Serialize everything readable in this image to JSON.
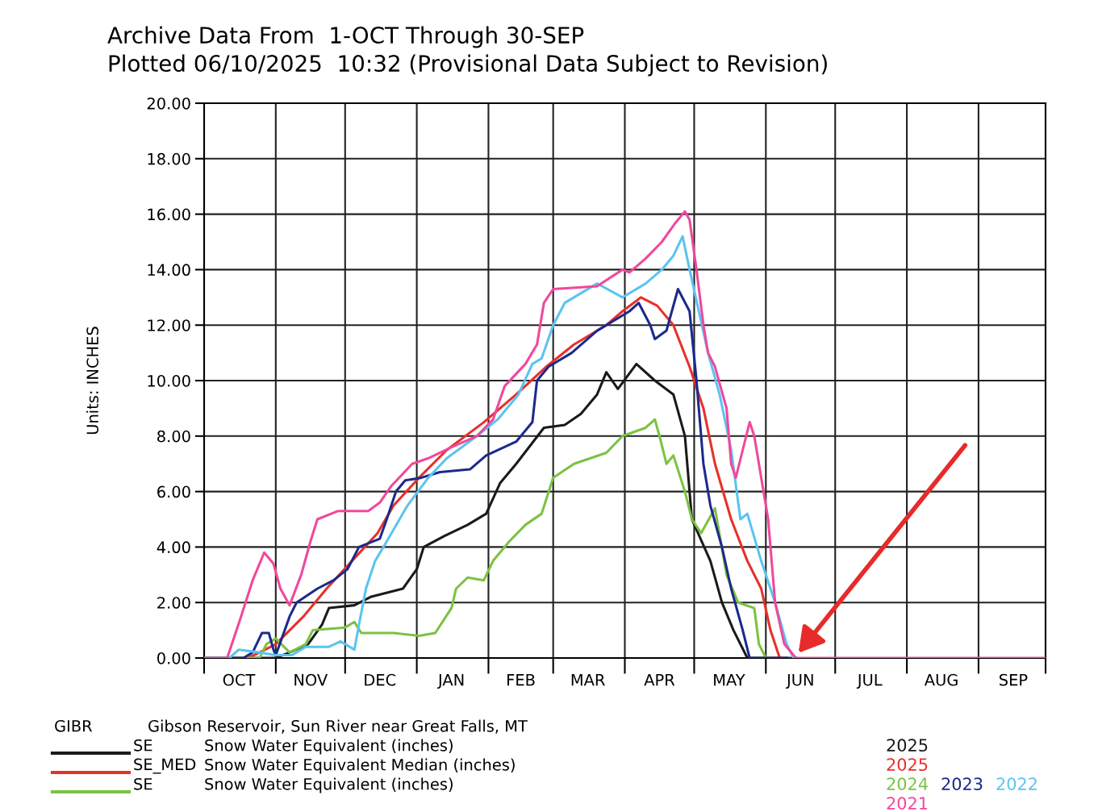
{
  "chart_data": {
    "type": "line",
    "title": "Archive Data From  1-OCT Through 30-SEP",
    "subtitle": "Plotted 06/10/2025  10:32 (Provisional Data Subject to Revision)",
    "ylabel": "Units: INCHES",
    "xlim": [
      "2024-10-01",
      "2025-09-30"
    ],
    "xticks": [
      {
        "value": "2024-10-01",
        "label": null
      },
      {
        "value": "2024-10-16",
        "label": "OCT"
      },
      {
        "value": "2024-11-01",
        "label": null
      },
      {
        "value": "2024-11-16",
        "label": "NOV"
      },
      {
        "value": "2024-12-01",
        "label": null
      },
      {
        "value": "2024-12-16",
        "label": "DEC"
      },
      {
        "value": "2025-01-01",
        "label": null
      },
      {
        "value": "2025-01-16",
        "label": "JAN"
      },
      {
        "value": "2025-02-01",
        "label": null
      },
      {
        "value": "2025-02-15",
        "label": "FEB"
      },
      {
        "value": "2025-03-01",
        "label": null
      },
      {
        "value": "2025-03-16",
        "label": "MAR"
      },
      {
        "value": "2025-04-01",
        "label": null
      },
      {
        "value": "2025-04-16",
        "label": "APR"
      },
      {
        "value": "2025-05-01",
        "label": null
      },
      {
        "value": "2025-05-16",
        "label": "MAY"
      },
      {
        "value": "2025-06-01",
        "label": null
      },
      {
        "value": "2025-06-16",
        "label": "JUN"
      },
      {
        "value": "2025-07-01",
        "label": null
      },
      {
        "value": "2025-07-16",
        "label": "JUL"
      },
      {
        "value": "2025-08-01",
        "label": null
      },
      {
        "value": "2025-08-16",
        "label": "AUG"
      },
      {
        "value": "2025-09-01",
        "label": null
      },
      {
        "value": "2025-09-16",
        "label": "SEP"
      },
      {
        "value": "2025-09-30",
        "label": null
      }
    ],
    "ylim": [
      0,
      20
    ],
    "yticks": [
      {
        "value": 0,
        "label": "0.00"
      },
      {
        "value": 2,
        "label": "2.00"
      },
      {
        "value": 4,
        "label": "4.00"
      },
      {
        "value": 6,
        "label": "6.00"
      },
      {
        "value": 8,
        "label": "8.00"
      },
      {
        "value": 10,
        "label": "10.00"
      },
      {
        "value": 12,
        "label": "12.00"
      },
      {
        "value": 14,
        "label": "14.00"
      },
      {
        "value": 16,
        "label": "16.00"
      },
      {
        "value": 18,
        "label": "18.00"
      },
      {
        "value": 20,
        "label": "20.00"
      }
    ],
    "grid": true,
    "legend": "bottom right",
    "marker": "none",
    "line_style": "solid",
    "annotations": [
      "GIBR",
      "Gibson Reservoir, Sun River near Great Falls, MT",
      "SE",
      "Snow Water Equivalent (inches)",
      "SE_MED",
      "Snow Water Equivalent Median (inches)",
      "SE",
      "Snow Water Equivalent (inches)"
    ],
    "series": [
      {
        "name": "2025",
        "color": "#1a1a1a",
        "x": [
          "2024-10-01",
          "2024-11-01",
          "2024-11-07",
          "2024-11-15",
          "2024-11-21",
          "2024-11-24",
          "2024-12-05",
          "2024-12-12",
          "2024-12-26",
          "2025-01-01",
          "2025-01-04",
          "2025-01-13",
          "2025-01-23",
          "2025-01-31",
          "2025-02-06",
          "2025-02-13",
          "2025-02-25",
          "2025-03-06",
          "2025-03-13",
          "2025-03-20",
          "2025-03-24",
          "2025-03-29",
          "2025-04-06",
          "2025-04-14",
          "2025-04-22",
          "2025-04-27",
          "2025-04-30",
          "2025-05-08",
          "2025-05-13",
          "2025-05-18",
          "2025-05-24",
          "2025-06-10"
        ],
        "values": [
          0,
          0,
          0.2,
          0.5,
          1.2,
          1.8,
          1.9,
          2.2,
          2.5,
          3.2,
          4.0,
          4.4,
          4.8,
          5.2,
          6.3,
          7.0,
          8.3,
          8.4,
          8.8,
          9.5,
          10.3,
          9.7,
          10.6,
          10.0,
          9.5,
          8.0,
          5.0,
          3.5,
          2.0,
          1.0,
          0,
          0
        ]
      },
      {
        "name": "2025",
        "color": "#e8302a",
        "x": [
          "2024-10-01",
          "2024-10-20",
          "2024-10-25",
          "2024-11-01",
          "2024-11-13",
          "2024-11-23",
          "2024-12-04",
          "2024-12-15",
          "2024-12-22",
          "2025-01-02",
          "2025-01-14",
          "2025-01-30",
          "2025-02-13",
          "2025-02-26",
          "2025-03-10",
          "2025-03-24",
          "2025-03-31",
          "2025-04-08",
          "2025-04-15",
          "2025-04-22",
          "2025-04-29",
          "2025-05-05",
          "2025-05-10",
          "2025-05-17",
          "2025-05-24",
          "2025-05-30",
          "2025-06-03",
          "2025-06-07"
        ],
        "values": [
          0,
          0,
          0.2,
          0.5,
          1.5,
          2.5,
          3.5,
          4.5,
          5.5,
          6.5,
          7.5,
          8.5,
          9.5,
          10.5,
          11.3,
          12.0,
          12.5,
          13.0,
          12.7,
          12.0,
          10.5,
          9.0,
          7.0,
          5.0,
          3.5,
          2.5,
          1.0,
          0
        ]
      },
      {
        "name": "2024",
        "color": "#7cc242",
        "x": [
          "2024-10-01",
          "2024-10-25",
          "2024-10-28",
          "2024-11-01",
          "2024-11-07",
          "2024-11-14",
          "2024-11-17",
          "2024-12-01",
          "2024-12-05",
          "2024-12-08",
          "2024-12-22",
          "2025-01-02",
          "2025-01-09",
          "2025-01-16",
          "2025-01-18",
          "2025-01-23",
          "2025-01-30",
          "2025-02-03",
          "2025-02-10",
          "2025-02-17",
          "2025-02-24",
          "2025-03-01",
          "2025-03-10",
          "2025-03-24",
          "2025-03-31",
          "2025-04-10",
          "2025-04-14",
          "2025-04-16",
          "2025-04-19",
          "2025-04-22",
          "2025-04-27",
          "2025-04-30",
          "2025-05-04",
          "2025-05-10",
          "2025-05-15",
          "2025-05-20",
          "2025-05-27",
          "2025-05-29",
          "2025-06-01"
        ],
        "values": [
          0,
          0,
          0.5,
          0.7,
          0.2,
          0.5,
          1.0,
          1.1,
          1.3,
          0.9,
          0.9,
          0.8,
          0.9,
          1.8,
          2.5,
          2.9,
          2.8,
          3.5,
          4.2,
          4.8,
          5.2,
          6.5,
          7.0,
          7.4,
          8.0,
          8.3,
          8.6,
          8.0,
          7.0,
          7.3,
          6.0,
          5.0,
          4.5,
          5.4,
          3.0,
          2.0,
          1.8,
          0.5,
          0
        ]
      },
      {
        "name": "2023",
        "color": "#1c2a8c",
        "x": [
          "2024-10-01",
          "2024-10-18",
          "2024-10-22",
          "2024-10-26",
          "2024-10-29",
          "2024-10-31",
          "2024-11-01",
          "2024-11-07",
          "2024-11-10",
          "2024-11-19",
          "2024-11-26",
          "2024-12-02",
          "2024-12-07",
          "2024-12-16",
          "2024-12-19",
          "2024-12-23",
          "2024-12-27",
          "2025-01-03",
          "2025-01-11",
          "2025-01-24",
          "2025-01-31",
          "2025-02-13",
          "2025-02-20",
          "2025-02-22",
          "2025-02-27",
          "2025-03-09",
          "2025-03-20",
          "2025-04-03",
          "2025-04-07",
          "2025-04-12",
          "2025-04-14",
          "2025-04-19",
          "2025-04-24",
          "2025-04-29",
          "2025-05-02",
          "2025-05-05",
          "2025-05-08",
          "2025-05-13",
          "2025-05-17",
          "2025-05-22",
          "2025-05-25",
          "2025-06-14"
        ],
        "values": [
          0,
          0,
          0.2,
          0.9,
          0.9,
          0.3,
          0.1,
          1.5,
          2.0,
          2.5,
          2.8,
          3.2,
          4.0,
          4.3,
          5.0,
          6.0,
          6.4,
          6.5,
          6.7,
          6.8,
          7.3,
          7.8,
          8.5,
          10.0,
          10.5,
          11.0,
          11.8,
          12.5,
          12.8,
          12.0,
          11.5,
          11.8,
          13.3,
          12.5,
          10.0,
          7.0,
          5.5,
          4.0,
          2.5,
          1.0,
          0,
          0
        ]
      },
      {
        "name": "2022",
        "color": "#5bc4f0",
        "x": [
          "2024-10-01",
          "2024-10-12",
          "2024-10-16",
          "2024-10-25",
          "2024-11-01",
          "2024-11-08",
          "2024-11-14",
          "2024-11-24",
          "2024-11-29",
          "2024-12-05",
          "2024-12-07",
          "2024-12-10",
          "2024-12-14",
          "2024-12-19",
          "2024-12-28",
          "2025-01-06",
          "2025-01-14",
          "2025-01-27",
          "2025-02-05",
          "2025-02-14",
          "2025-02-20",
          "2025-02-24",
          "2025-03-01",
          "2025-03-06",
          "2025-03-20",
          "2025-03-31",
          "2025-04-10",
          "2025-04-17",
          "2025-04-22",
          "2025-04-26",
          "2025-04-29",
          "2025-05-03",
          "2025-05-07",
          "2025-05-12",
          "2025-05-17",
          "2025-05-21",
          "2025-05-24",
          "2025-05-30",
          "2025-06-05",
          "2025-06-10",
          "2025-06-13"
        ],
        "values": [
          0,
          0,
          0.3,
          0.2,
          0.1,
          0.1,
          0.4,
          0.4,
          0.6,
          0.3,
          1.2,
          2.5,
          3.5,
          4.2,
          5.5,
          6.5,
          7.2,
          8.0,
          8.6,
          9.5,
          10.6,
          10.8,
          12.0,
          12.8,
          13.5,
          13.0,
          13.5,
          14.0,
          14.5,
          15.2,
          14.0,
          12.5,
          11.0,
          9.5,
          7.5,
          5.0,
          5.2,
          3.5,
          2.0,
          0.5,
          0
        ]
      },
      {
        "name": "2021",
        "color": "#f0489c",
        "x": [
          "2024-10-01",
          "2024-10-11",
          "2024-10-17",
          "2024-10-22",
          "2024-10-27",
          "2024-10-31",
          "2024-11-03",
          "2024-11-07",
          "2024-11-12",
          "2024-11-16",
          "2024-11-19",
          "2024-11-28",
          "2024-12-11",
          "2024-12-16",
          "2024-12-21",
          "2024-12-30",
          "2025-01-06",
          "2025-01-16",
          "2025-01-27",
          "2025-02-03",
          "2025-02-08",
          "2025-02-17",
          "2025-02-22",
          "2025-02-25",
          "2025-03-01",
          "2025-03-20",
          "2025-03-31",
          "2025-04-03",
          "2025-04-10",
          "2025-04-17",
          "2025-04-23",
          "2025-04-27",
          "2025-04-29",
          "2025-05-02",
          "2025-05-05",
          "2025-05-07",
          "2025-05-10",
          "2025-05-15",
          "2025-05-17",
          "2025-05-19",
          "2025-05-22",
          "2025-05-25",
          "2025-05-27",
          "2025-05-30",
          "2025-06-02",
          "2025-06-05",
          "2025-06-09",
          "2025-06-14",
          "2025-09-30"
        ],
        "values": [
          0,
          0,
          1.5,
          2.8,
          3.8,
          3.4,
          2.5,
          1.9,
          3.0,
          4.2,
          5.0,
          5.3,
          5.3,
          5.6,
          6.2,
          7.0,
          7.2,
          7.6,
          8.0,
          8.6,
          9.8,
          10.6,
          11.3,
          12.8,
          13.3,
          13.4,
          14.0,
          13.9,
          14.4,
          15.0,
          15.7,
          16.1,
          15.8,
          14.0,
          12.0,
          11.0,
          10.5,
          9.0,
          7.0,
          6.5,
          7.5,
          8.5,
          8.0,
          6.5,
          5.0,
          2.0,
          0.5,
          0,
          0
        ]
      }
    ]
  }
}
